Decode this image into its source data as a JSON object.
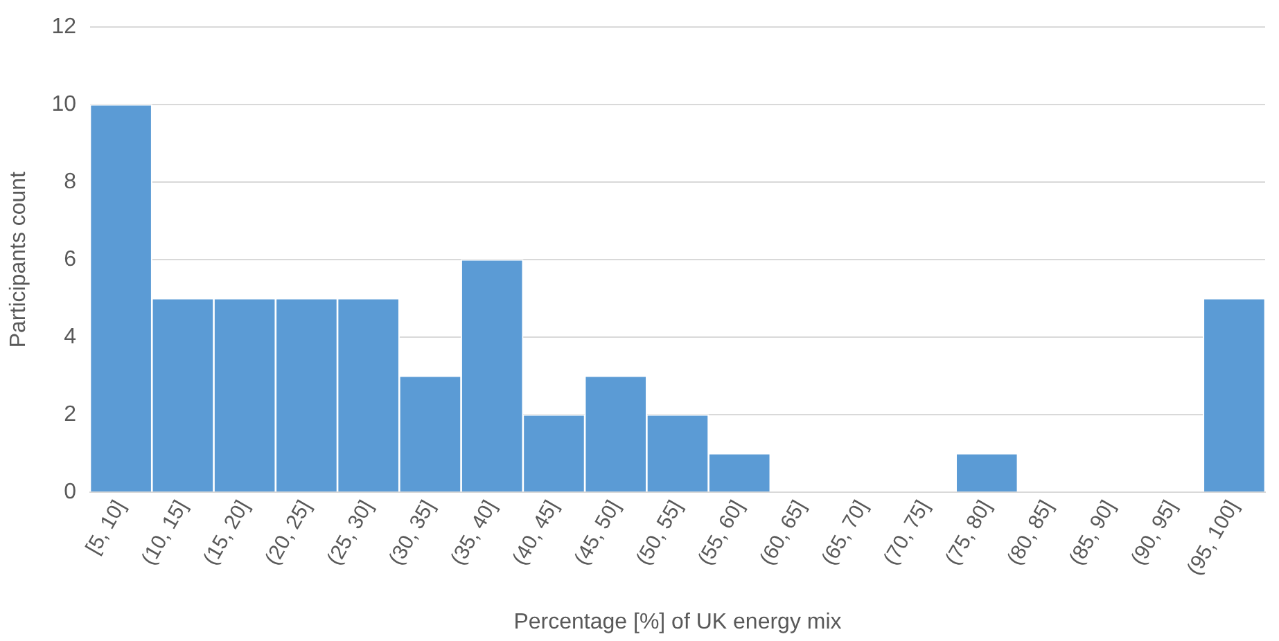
{
  "chart_data": {
    "type": "bar",
    "xlabel": "Percentage [%] of UK energy mix",
    "ylabel": "Participants count",
    "categories": [
      "[5, 10]",
      "(10, 15]",
      "(15, 20]",
      "(20, 25]",
      "(25, 30]",
      "(30, 35]",
      "(35, 40]",
      "(40, 45]",
      "(45, 50]",
      "(50, 55]",
      "(55, 60]",
      "(60, 65]",
      "(65, 70]",
      "(70, 75]",
      "(75, 80]",
      "(80, 85]",
      "(85, 90]",
      "(90, 95]",
      "(95, 100]"
    ],
    "values": [
      10,
      5,
      5,
      5,
      5,
      3,
      6,
      2,
      3,
      2,
      1,
      0,
      0,
      0,
      1,
      0,
      0,
      0,
      5
    ],
    "color": "#5b9bd5",
    "ylim": [
      0,
      12
    ],
    "yticks": [
      0,
      2,
      4,
      6,
      8,
      10,
      12
    ],
    "grid": "y"
  }
}
